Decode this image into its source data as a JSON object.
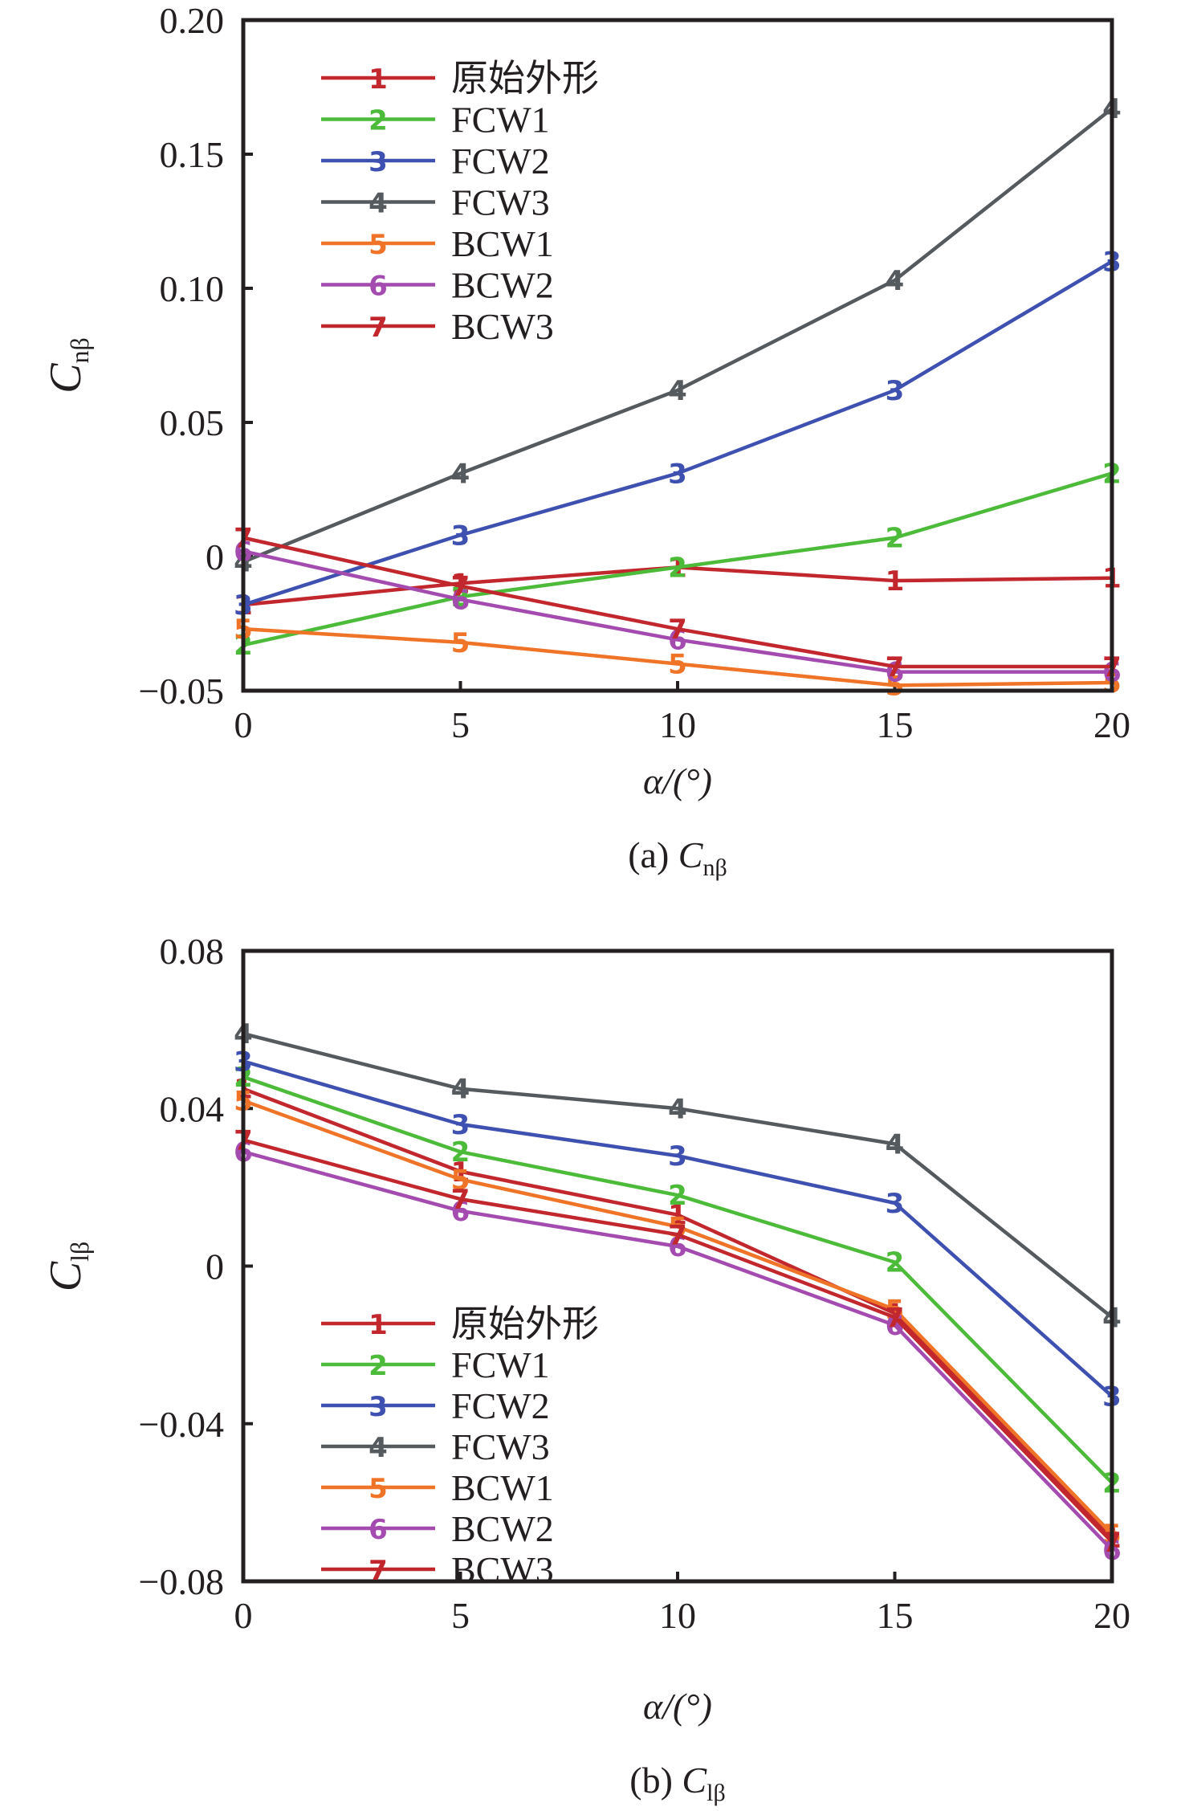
{
  "series_styles": [
    {
      "id": "1",
      "name": "原始外形",
      "color": "#c1272d"
    },
    {
      "id": "2",
      "name": "FCW1",
      "color": "#4dbb3a"
    },
    {
      "id": "3",
      "name": "FCW2",
      "color": "#3f51b0"
    },
    {
      "id": "4",
      "name": "FCW3",
      "color": "#555a5f"
    },
    {
      "id": "5",
      "name": "BCW1",
      "color": "#f07428"
    },
    {
      "id": "6",
      "name": "BCW2",
      "color": "#a44bb0"
    },
    {
      "id": "7",
      "name": "BCW3",
      "color": "#c1272d"
    }
  ],
  "chart_data": [
    {
      "type": "line",
      "caption_prefix": "(a) ",
      "caption_symbol": "C",
      "caption_subscript": "nβ",
      "ylabel_symbol": "C",
      "ylabel_subscript": "nβ",
      "xlabel": "α/(°)",
      "x": [
        0,
        5,
        10,
        15,
        20
      ],
      "xlim": [
        0,
        20
      ],
      "ylim": [
        -0.05,
        0.2
      ],
      "xticks": [
        "0",
        "5",
        "10",
        "15",
        "20"
      ],
      "yticks": [
        -0.05,
        0,
        0.05,
        0.1,
        0.15,
        0.2
      ],
      "ytick_labels": [
        "−0.05",
        "0",
        "0.05",
        "0.10",
        "0.15",
        "0.20"
      ],
      "grid": false,
      "legend_position": "top-left",
      "series": [
        {
          "name": "原始外形",
          "marker": "1",
          "values": [
            -0.018,
            -0.01,
            -0.004,
            -0.009,
            -0.008
          ]
        },
        {
          "name": "FCW1",
          "marker": "2",
          "values": [
            -0.033,
            -0.015,
            -0.004,
            0.007,
            0.031
          ]
        },
        {
          "name": "FCW2",
          "marker": "3",
          "values": [
            -0.018,
            0.008,
            0.031,
            0.062,
            0.11
          ]
        },
        {
          "name": "FCW3",
          "marker": "4",
          "values": [
            -0.002,
            0.031,
            0.062,
            0.103,
            0.167
          ]
        },
        {
          "name": "BCW1",
          "marker": "5",
          "values": [
            -0.027,
            -0.032,
            -0.04,
            -0.048,
            -0.047
          ]
        },
        {
          "name": "BCW2",
          "marker": "6",
          "values": [
            0.002,
            -0.016,
            -0.031,
            -0.043,
            -0.043
          ]
        },
        {
          "name": "BCW3",
          "marker": "7",
          "values": [
            0.007,
            -0.011,
            -0.027,
            -0.041,
            -0.041
          ]
        }
      ]
    },
    {
      "type": "line",
      "caption_prefix": "(b) ",
      "caption_symbol": "C",
      "caption_subscript": "lβ",
      "ylabel_symbol": "C",
      "ylabel_subscript": "lβ",
      "xlabel": "α/(°)",
      "x": [
        0,
        5,
        10,
        15,
        20
      ],
      "xlim": [
        0,
        20
      ],
      "ylim": [
        -0.08,
        0.08
      ],
      "xticks": [
        "0",
        "5",
        "10",
        "15",
        "20"
      ],
      "yticks": [
        -0.08,
        -0.04,
        0,
        0.04,
        0.08
      ],
      "ytick_labels": [
        "−0.08",
        "−0.04",
        "0",
        "0.04",
        "0.08"
      ],
      "grid": false,
      "legend_position": "bottom-left",
      "series": [
        {
          "name": "原始外形",
          "marker": "1",
          "values": [
            0.045,
            0.024,
            0.013,
            -0.012,
            -0.069
          ]
        },
        {
          "name": "FCW1",
          "marker": "2",
          "values": [
            0.048,
            0.029,
            0.018,
            0.001,
            -0.055
          ]
        },
        {
          "name": "FCW2",
          "marker": "3",
          "values": [
            0.052,
            0.036,
            0.028,
            0.016,
            -0.033
          ]
        },
        {
          "name": "FCW3",
          "marker": "4",
          "values": [
            0.059,
            0.045,
            0.04,
            0.031,
            -0.013
          ]
        },
        {
          "name": "BCW1",
          "marker": "5",
          "values": [
            0.042,
            0.022,
            0.01,
            -0.011,
            -0.068
          ]
        },
        {
          "name": "BCW2",
          "marker": "6",
          "values": [
            0.029,
            0.014,
            0.005,
            -0.015,
            -0.072
          ]
        },
        {
          "name": "BCW3",
          "marker": "7",
          "values": [
            0.032,
            0.017,
            0.008,
            -0.013,
            -0.07
          ]
        }
      ]
    }
  ]
}
